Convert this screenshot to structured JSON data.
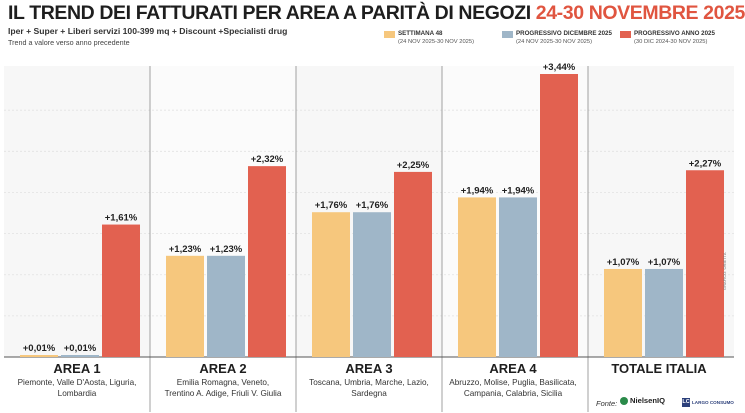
{
  "header": {
    "title_main": "IL TREND DEI FATTURATI PER AREA A PARITÀ DI NEGOZI",
    "title_dates": "24-30 NOVEMBRE 2025",
    "subtitle": "Iper + Super + Liberi servizi 100-399 mq + Discount +Specialisti drug",
    "note": "Trend a valore verso anno precedente"
  },
  "legend": [
    {
      "label": "SETTIMANA 48",
      "sub": "(24 NOV 2025-30 NOV 2025)",
      "color": "#f6c77d"
    },
    {
      "label": "PROGRESSIVO DICEMBRE 2025",
      "sub": "(24 NOV 2025-30 NOV 2025)",
      "color": "#9fb6c8"
    },
    {
      "label": "PROGRESSIVO ANNO 2025",
      "sub": "(30 DIC 2024-30 NOV 2025)",
      "color": "#e26150"
    }
  ],
  "areas": [
    {
      "name": "AREA 1",
      "regions": [
        "Piemonte, Valle D'Aosta, Liguria,",
        "Lombardia"
      ]
    },
    {
      "name": "AREA 2",
      "regions": [
        "Emilia Romagna, Veneto,",
        "Trentino A. Adige, Friuli V. Giulia"
      ]
    },
    {
      "name": "AREA 3",
      "regions": [
        "Toscana, Umbria, Marche, Lazio,",
        "Sardegna"
      ]
    },
    {
      "name": "AREA 4",
      "regions": [
        "Abruzzo, Molise, Puglia, Basilicata,",
        "Campania, Calabria, Sicilia"
      ]
    },
    {
      "name": "TOTALE ITALIA",
      "regions": []
    }
  ],
  "chart_data": {
    "type": "bar",
    "categories": [
      "AREA 1",
      "AREA 2",
      "AREA 3",
      "AREA 4",
      "TOTALE ITALIA"
    ],
    "series": [
      {
        "name": "SETTIMANA 48",
        "color": "#f6c77d",
        "values": [
          0.01,
          1.23,
          1.76,
          1.94,
          1.07
        ],
        "labels": [
          "+0,01%",
          "+1,23%",
          "+1,76%",
          "+1,94%",
          "+1,07%"
        ]
      },
      {
        "name": "PROGRESSIVO DICEMBRE 2025",
        "color": "#9fb6c8",
        "values": [
          0.01,
          1.23,
          1.76,
          1.94,
          1.07
        ],
        "labels": [
          "+0,01%",
          "+1,23%",
          "+1,76%",
          "+1,94%",
          "+1,07%"
        ]
      },
      {
        "name": "PROGRESSIVO ANNO 2025",
        "color": "#e26150",
        "values": [
          1.61,
          2.32,
          2.25,
          3.44,
          2.27
        ],
        "labels": [
          "+1,61%",
          "+2,32%",
          "+2,25%",
          "+3,44%",
          "+2,27%"
        ]
      }
    ],
    "title": "IL TREND DEI FATTURATI PER AREA A PARITÀ DI NEGOZI 24-30 NOVEMBRE 2025",
    "ylabel": "",
    "ylim": [
      0,
      3.6
    ],
    "grid": true,
    "legend_position": "top-right"
  },
  "footer": {
    "source_label": "Fonte:",
    "nielsen_name": "NielsenIQ",
    "lc_mark": "LC",
    "lc_name": "LARGO CONSUMO",
    "credit": "GRAFICO: ORIETTA"
  }
}
